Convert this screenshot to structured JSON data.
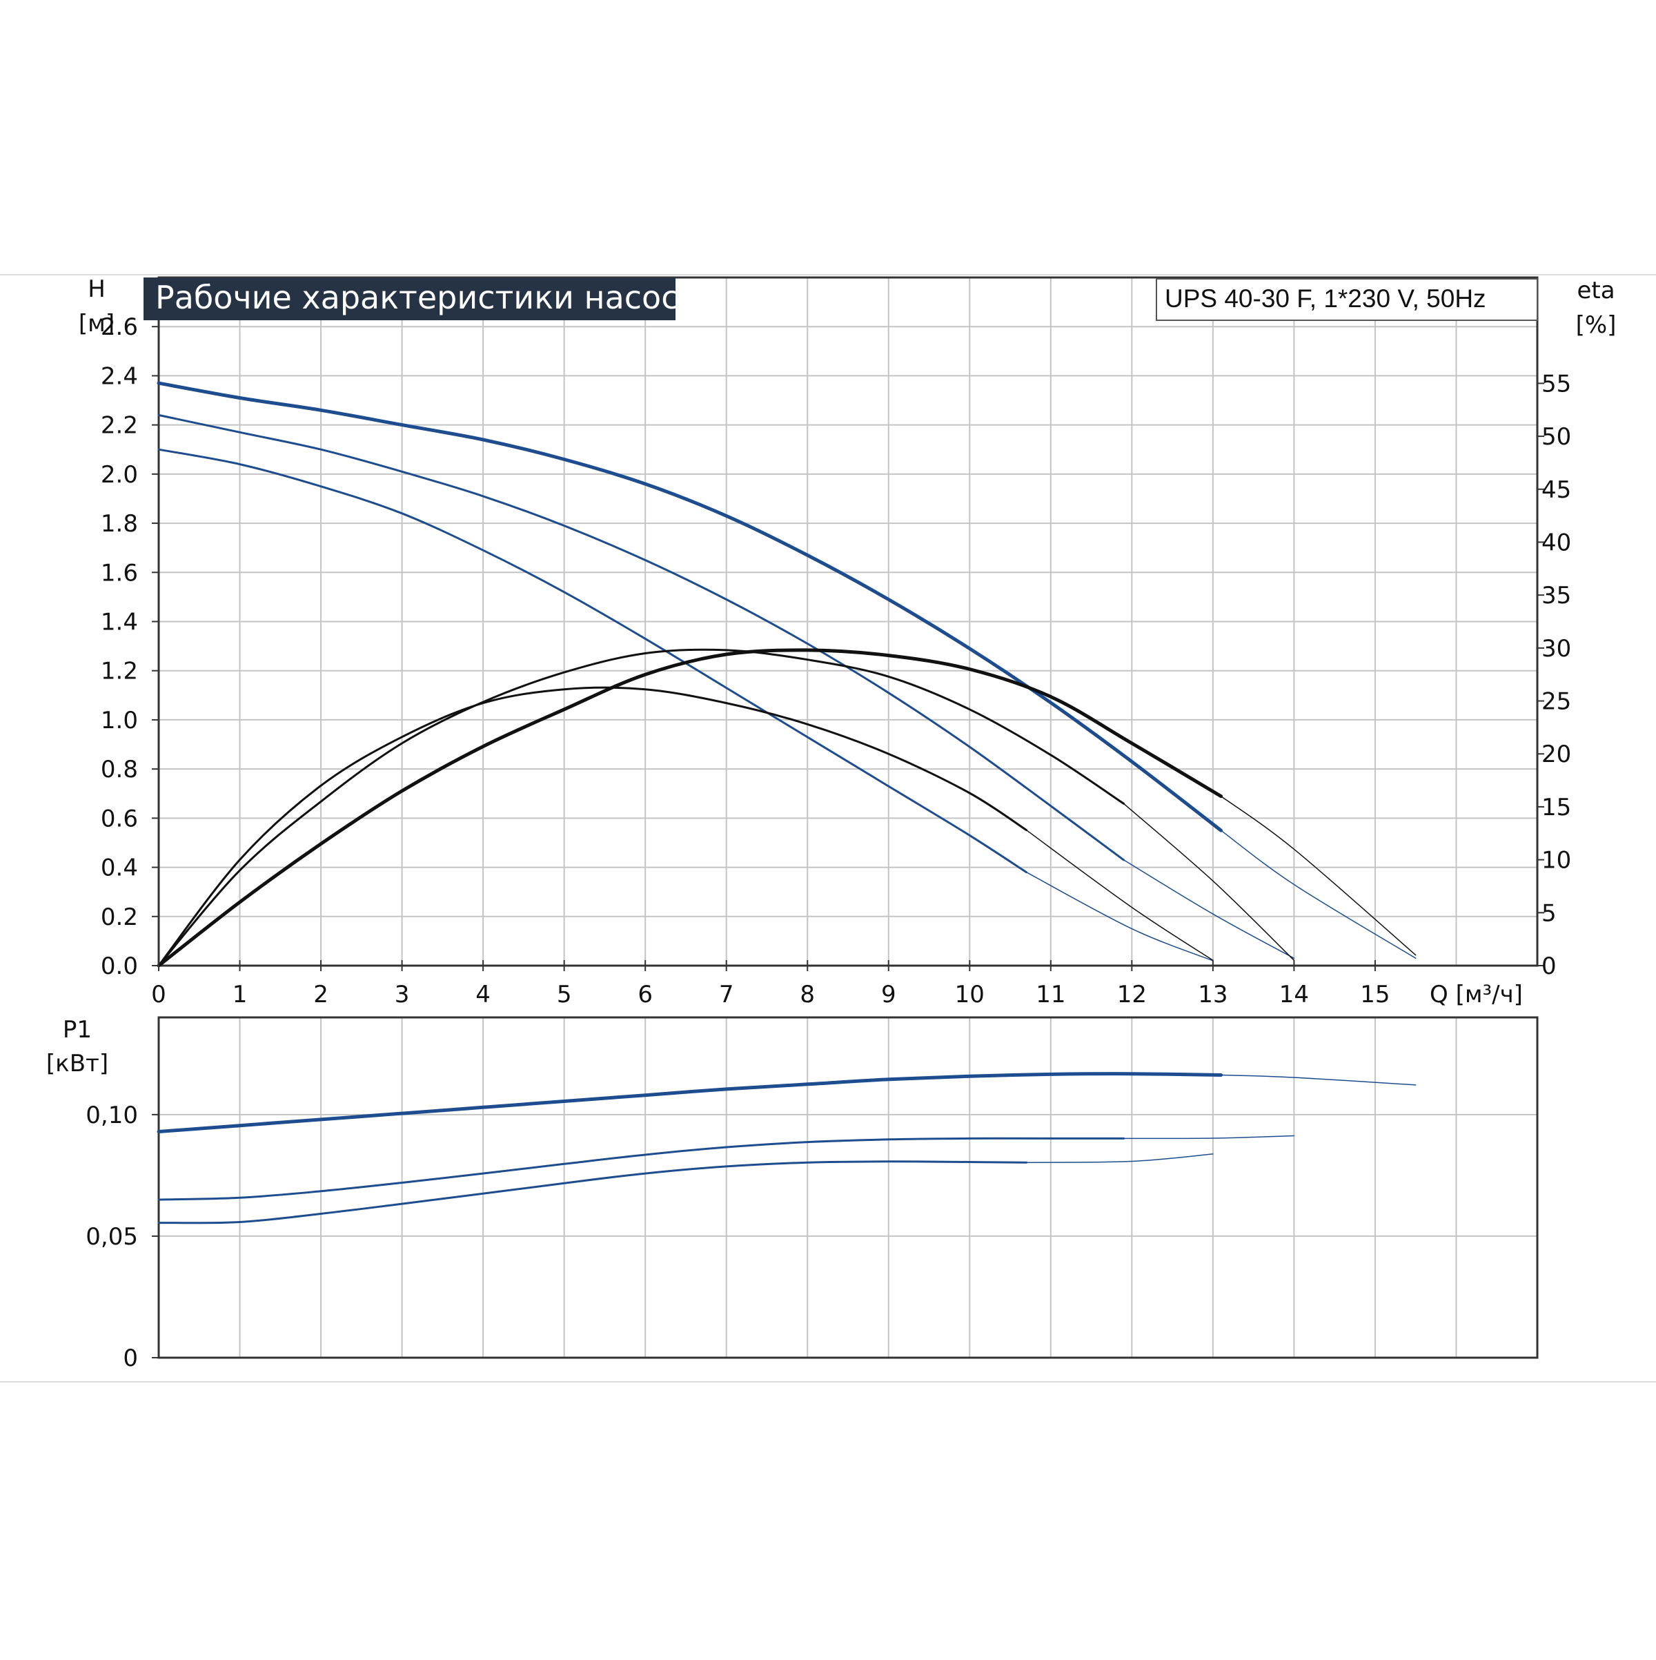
{
  "chart_data": [
    {
      "type": "line",
      "title": "Рабочие характеристики насоса",
      "subtitle": "UPS 40-30 F, 1*230 V, 50Hz",
      "xlabel": "Q [м³/ч]",
      "ylabel": "H",
      "ylabel_unit": "[м]",
      "y2label": "eta",
      "y2label_unit": "[%]",
      "xlim": [
        0,
        17
      ],
      "ylim": [
        0,
        2.8
      ],
      "y2lim": [
        0,
        65
      ],
      "grid": true,
      "x_ticks": [
        "0",
        "1",
        "2",
        "3",
        "4",
        "5",
        "6",
        "7",
        "8",
        "9",
        "10",
        "11",
        "12",
        "13",
        "14",
        "15"
      ],
      "y_ticks": [
        "0.0",
        "0.2",
        "0.4",
        "0.6",
        "0.8",
        "1.0",
        "1.2",
        "1.4",
        "1.6",
        "1.8",
        "2.0",
        "2.2",
        "2.4",
        "2.6"
      ],
      "y2_ticks": [
        "0",
        "5",
        "10",
        "15",
        "20",
        "25",
        "30",
        "35",
        "40",
        "45",
        "50",
        "55"
      ],
      "series": [
        {
          "kind": "head",
          "color": "#1d4d8f",
          "width": 5,
          "thin_from": 13.1,
          "x": [
            0,
            1,
            2,
            3,
            4,
            5,
            6,
            7,
            8,
            9,
            10,
            11,
            12,
            13.1,
            14,
            15.5
          ],
          "y": [
            2.37,
            2.31,
            2.26,
            2.2,
            2.14,
            2.06,
            1.96,
            1.83,
            1.67,
            1.49,
            1.29,
            1.07,
            0.83,
            0.55,
            0.33,
            0.03
          ]
        },
        {
          "kind": "head",
          "color": "#1d4d8f",
          "width": 3,
          "thin_from": 11.9,
          "x": [
            0,
            1,
            2,
            3,
            4,
            5,
            6,
            7,
            8,
            9,
            10,
            11,
            11.9,
            13,
            14
          ],
          "y": [
            2.24,
            2.17,
            2.1,
            2.01,
            1.91,
            1.79,
            1.65,
            1.49,
            1.31,
            1.11,
            0.89,
            0.65,
            0.43,
            0.21,
            0.03
          ]
        },
        {
          "kind": "head",
          "color": "#1d4d8f",
          "width": 3,
          "thin_from": 10.7,
          "x": [
            0,
            1,
            2,
            3,
            4,
            5,
            6,
            7,
            8,
            9,
            10,
            10.7,
            12,
            13
          ],
          "y": [
            2.1,
            2.04,
            1.95,
            1.84,
            1.69,
            1.52,
            1.33,
            1.13,
            0.93,
            0.73,
            0.53,
            0.38,
            0.15,
            0.02
          ]
        },
        {
          "kind": "eta",
          "color": "#111111",
          "width": 5,
          "thin_from": 13.1,
          "x": [
            0,
            1,
            2,
            3,
            4,
            5,
            6,
            7,
            8,
            9,
            10,
            11,
            12,
            13.1,
            14,
            15.5
          ],
          "y": [
            0,
            6,
            11.5,
            16.5,
            20.7,
            24.2,
            27.5,
            29.4,
            29.8,
            29.3,
            28,
            25.4,
            21,
            16,
            11,
            1
          ]
        },
        {
          "kind": "eta",
          "color": "#111111",
          "width": 3,
          "thin_from": 11.9,
          "x": [
            0,
            1,
            2,
            3,
            4,
            5,
            6,
            7,
            8,
            9,
            10,
            11,
            11.9,
            13,
            14
          ],
          "y": [
            0,
            9,
            15.5,
            21,
            24.9,
            27.7,
            29.5,
            29.8,
            28.9,
            27.3,
            24.2,
            19.9,
            15.3,
            8,
            0.5
          ]
        },
        {
          "kind": "eta",
          "color": "#111111",
          "width": 3,
          "thin_from": 10.7,
          "x": [
            0,
            1,
            2,
            3,
            4,
            5,
            6,
            7,
            8,
            9,
            10,
            10.7,
            12,
            13
          ],
          "y": [
            0,
            10,
            17,
            21.6,
            24.8,
            26.1,
            26.1,
            24.8,
            22.8,
            20,
            16.3,
            12.8,
            5.5,
            0.5
          ]
        }
      ]
    },
    {
      "type": "line",
      "ylabel": "P1",
      "ylabel_unit": "[кВт]",
      "xlim": [
        0,
        17
      ],
      "ylim": [
        0,
        0.14
      ],
      "grid": true,
      "y_ticks": [
        {
          "label": "0,10",
          "value": 0.1
        },
        {
          "label": "0,05",
          "value": 0.05
        },
        {
          "label": "0",
          "value": 0
        }
      ],
      "series": [
        {
          "kind": "power",
          "color": "#1d4d8f",
          "width": 5,
          "thin_from": 13.1,
          "x": [
            0,
            1,
            2,
            3,
            4,
            5,
            6,
            7,
            8,
            9,
            10,
            11,
            12,
            13.1,
            14,
            15.5
          ],
          "y": [
            0.093,
            0.0955,
            0.098,
            0.1005,
            0.103,
            0.1055,
            0.108,
            0.1105,
            0.1125,
            0.1145,
            0.1158,
            0.1166,
            0.1168,
            0.1163,
            0.1153,
            0.1122
          ]
        },
        {
          "kind": "power",
          "color": "#1d4d8f",
          "width": 3,
          "thin_from": 11.9,
          "x": [
            0,
            1,
            2,
            3,
            4,
            5,
            6,
            7,
            8,
            9,
            10,
            11,
            11.9,
            13,
            14
          ],
          "y": [
            0.065,
            0.0658,
            0.0685,
            0.072,
            0.0758,
            0.0797,
            0.0835,
            0.0866,
            0.0887,
            0.0898,
            0.0902,
            0.0902,
            0.0902,
            0.0903,
            0.0913
          ]
        },
        {
          "kind": "power",
          "color": "#1d4d8f",
          "width": 3,
          "thin_from": 10.7,
          "x": [
            0,
            1,
            2,
            3,
            4,
            5,
            6,
            7,
            8,
            9,
            10,
            10.7,
            12,
            13
          ],
          "y": [
            0.0555,
            0.0558,
            0.0592,
            0.0633,
            0.0675,
            0.0718,
            0.0758,
            0.0787,
            0.0803,
            0.0807,
            0.0805,
            0.0803,
            0.0808,
            0.0838
          ]
        }
      ]
    }
  ]
}
